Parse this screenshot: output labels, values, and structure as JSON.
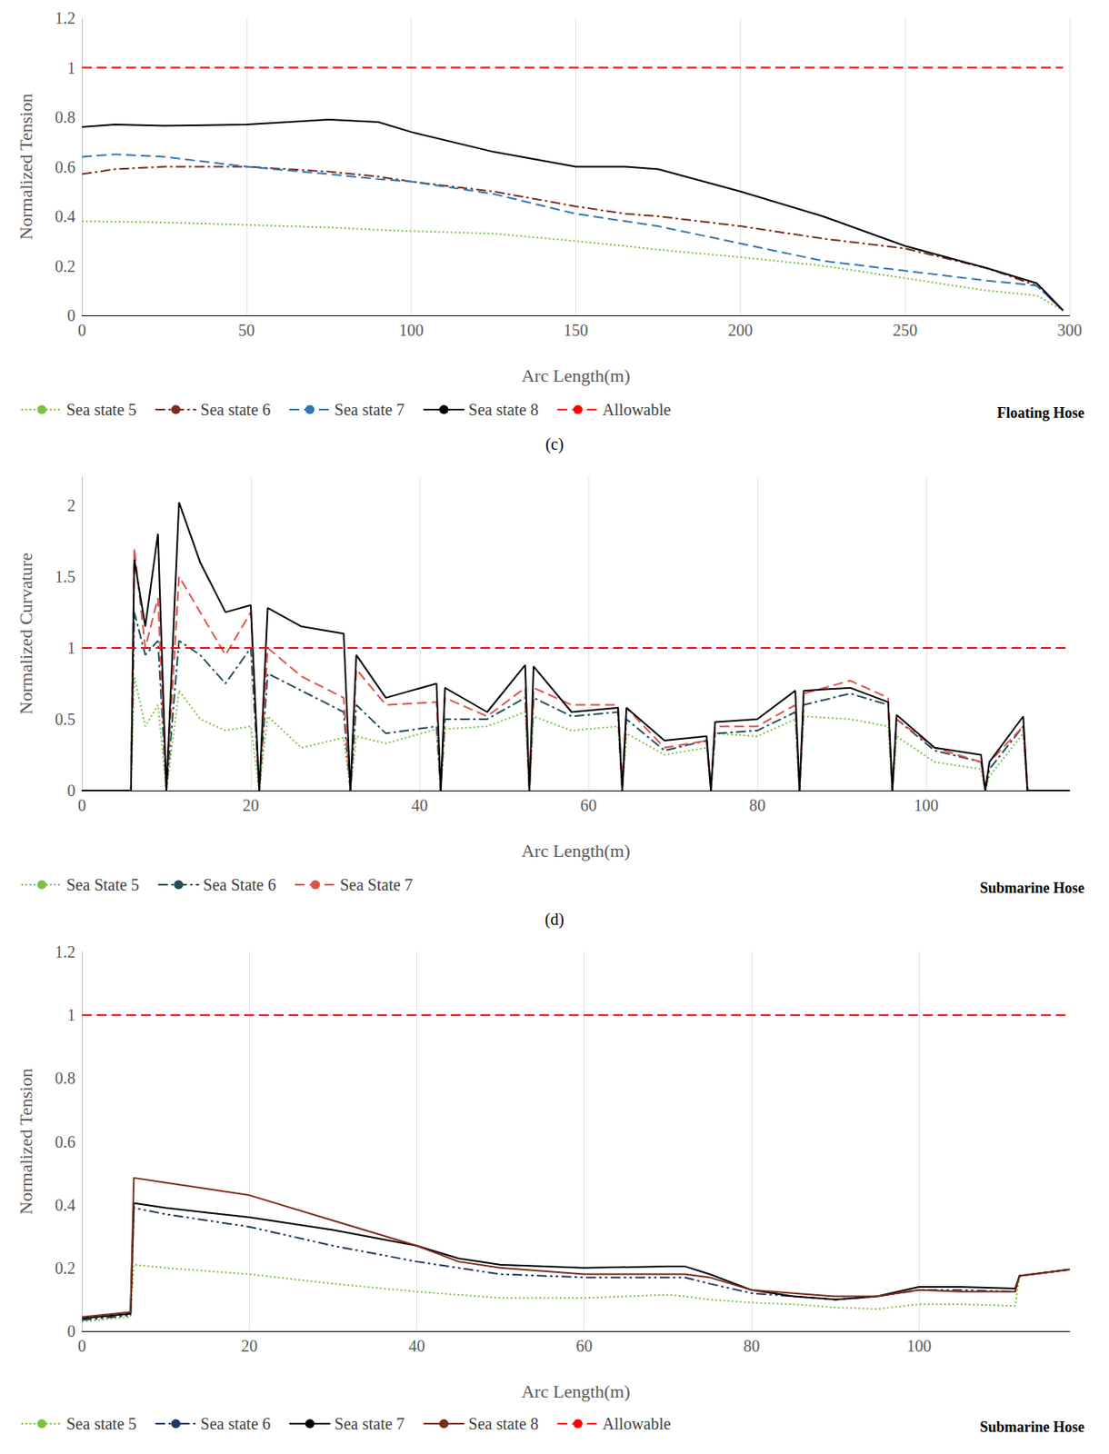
{
  "chart_data": [
    {
      "type": "line",
      "subtitle": "(c)",
      "annotations": [
        "Floating Hose"
      ],
      "x_label": "Arc Length(m)",
      "y_label": "Normalized Tension",
      "x": [
        0,
        10,
        25,
        50,
        75,
        90,
        100,
        125,
        150,
        165,
        175,
        200,
        225,
        250,
        275,
        290,
        298
      ],
      "xlim": [
        0,
        300
      ],
      "xticks": [
        0,
        50,
        100,
        150,
        200,
        250,
        300
      ],
      "ylim": [
        0,
        1.2
      ],
      "yticks": [
        0,
        0.2,
        0.4,
        0.6,
        0.8,
        1,
        1.2
      ],
      "grid": true,
      "legend": "bottom",
      "series": [
        {
          "name": "Sea state 5",
          "color": "#7ac143",
          "line_style": "dotted",
          "values": [
            0.38,
            0.378,
            0.375,
            0.365,
            0.355,
            0.345,
            0.34,
            0.33,
            0.3,
            0.28,
            0.265,
            0.235,
            0.2,
            0.15,
            0.1,
            0.08,
            0.02
          ]
        },
        {
          "name": "Sea state 6",
          "color": "#7b2c1a",
          "line_style": "dashdot",
          "values": [
            0.57,
            0.59,
            0.6,
            0.6,
            0.58,
            0.56,
            0.54,
            0.5,
            0.44,
            0.41,
            0.4,
            0.36,
            0.31,
            0.27,
            0.19,
            0.12,
            0.02
          ]
        },
        {
          "name": "Sea state 7",
          "color": "#2e75b6",
          "line_style": "dashed",
          "values": [
            0.64,
            0.65,
            0.64,
            0.6,
            0.57,
            0.55,
            0.54,
            0.49,
            0.41,
            0.38,
            0.36,
            0.29,
            0.22,
            0.18,
            0.14,
            0.12,
            0.02
          ]
        },
        {
          "name": "Sea state 8",
          "color": "#000000",
          "line_style": "solid",
          "values": [
            0.76,
            0.77,
            0.765,
            0.77,
            0.79,
            0.78,
            0.74,
            0.66,
            0.6,
            0.6,
            0.59,
            0.5,
            0.4,
            0.28,
            0.19,
            0.13,
            0.02
          ]
        },
        {
          "name": "Allowable",
          "color": "#ff0000",
          "line_style": "dashed",
          "values": [
            1,
            1,
            1,
            1,
            1,
            1,
            1,
            1,
            1,
            1,
            1,
            1,
            1,
            1,
            1,
            1,
            1
          ]
        }
      ]
    },
    {
      "type": "line",
      "subtitle": "(d)",
      "annotations": [
        "Submarine Hose"
      ],
      "x_label": "Arc Length(m)",
      "y_label": "Normalized Curvature",
      "x": [
        0,
        5.8,
        6.2,
        7.5,
        9,
        10,
        11.5,
        14,
        17,
        20,
        21,
        22,
        26,
        31,
        31.8,
        32.5,
        36,
        42,
        42.5,
        43,
        48,
        52.5,
        53,
        53.5,
        58,
        63.5,
        64,
        64.5,
        69,
        74,
        74.5,
        75,
        80,
        84.5,
        85,
        85.5,
        91,
        95.5,
        96,
        96.5,
        101,
        106.5,
        107,
        107.5,
        111.5,
        112,
        117
      ],
      "xlim": [
        0,
        117
      ],
      "xticks": [
        0,
        20,
        40,
        60,
        80,
        100
      ],
      "ylim": [
        0,
        2.2
      ],
      "yticks": [
        0,
        0.5,
        1,
        1.5,
        2
      ],
      "grid": true,
      "legend": "bottom",
      "series": [
        {
          "name": "Sea State 5",
          "color": "#7ac143",
          "line_style": "dotted",
          "values": [
            0,
            0,
            0.8,
            0.45,
            0.6,
            0,
            0.7,
            0.5,
            0.42,
            0.45,
            0,
            0.52,
            0.3,
            0.37,
            0,
            0.38,
            0.33,
            0.43,
            0,
            0.43,
            0.45,
            0.55,
            0,
            0.52,
            0.42,
            0.45,
            0,
            0.4,
            0.25,
            0.3,
            0,
            0.4,
            0.38,
            0.5,
            0,
            0.52,
            0.5,
            0.45,
            0,
            0.38,
            0.2,
            0.15,
            0,
            0.1,
            0.4,
            0,
            0
          ]
        },
        {
          "name": "Sea State 6",
          "color": "#1f4e5a",
          "line_style": "dashdot",
          "values": [
            0,
            0,
            1.25,
            0.95,
            1.05,
            0,
            1.05,
            0.95,
            0.75,
            1.0,
            0,
            0.82,
            0.7,
            0.55,
            0,
            0.6,
            0.4,
            0.45,
            0,
            0.5,
            0.5,
            0.65,
            0,
            0.65,
            0.52,
            0.55,
            0,
            0.5,
            0.28,
            0.35,
            0,
            0.4,
            0.42,
            0.55,
            0,
            0.6,
            0.68,
            0.6,
            0,
            0.5,
            0.28,
            0.2,
            0,
            0.15,
            0.45,
            0,
            0
          ]
        },
        {
          "name": "Sea State 7",
          "color": "#e0504a",
          "line_style": "dashed",
          "values": [
            0,
            0,
            1.7,
            1.0,
            1.35,
            0,
            1.5,
            1.25,
            0.95,
            1.25,
            0,
            1.0,
            0.8,
            0.65,
            0,
            0.85,
            0.6,
            0.62,
            0,
            0.65,
            0.52,
            0.72,
            0,
            0.72,
            0.6,
            0.6,
            0,
            0.58,
            0.3,
            0.35,
            0,
            0.45,
            0.45,
            0.6,
            0,
            0.68,
            0.77,
            0.65,
            0,
            0.5,
            0.3,
            0.2,
            0,
            0.2,
            0.45,
            0,
            0
          ]
        },
        {
          "color": "#000000",
          "line_style": "solid",
          "values": [
            0,
            0,
            1.62,
            1.15,
            1.8,
            0,
            2.02,
            1.6,
            1.25,
            1.3,
            0,
            1.28,
            1.15,
            1.1,
            0,
            0.95,
            0.65,
            0.75,
            0,
            0.72,
            0.55,
            0.88,
            0,
            0.87,
            0.55,
            0.58,
            0,
            0.58,
            0.35,
            0.38,
            0,
            0.48,
            0.5,
            0.7,
            0,
            0.7,
            0.72,
            0.62,
            0,
            0.53,
            0.3,
            0.25,
            0,
            0.2,
            0.52,
            0,
            0
          ]
        },
        {
          "color": "#ff0000",
          "line_style": "dashed",
          "values": [
            1,
            1,
            1,
            1,
            1,
            1,
            1,
            1,
            1,
            1,
            1,
            1,
            1,
            1,
            1,
            1,
            1,
            1,
            1,
            1,
            1,
            1,
            1,
            1,
            1,
            1,
            1,
            1,
            1,
            1,
            1,
            1,
            1,
            1,
            1,
            1,
            1,
            1,
            1,
            1,
            1,
            1,
            1,
            1,
            1,
            1,
            1
          ]
        }
      ]
    },
    {
      "type": "line",
      "annotations": [
        "Submarine Hose"
      ],
      "x_label": "Arc Length(m)",
      "y_label": "Normalized Tension",
      "x": [
        0,
        5.8,
        6.2,
        10,
        20,
        30,
        40,
        45,
        50,
        60,
        70,
        72,
        75,
        80,
        85,
        90,
        95,
        100,
        105,
        111.5,
        112,
        118
      ],
      "xlim": [
        0,
        118
      ],
      "xticks": [
        0,
        20,
        40,
        60,
        80,
        100
      ],
      "ylim": [
        0,
        1.2
      ],
      "yticks": [
        0,
        0.2,
        0.4,
        0.6,
        0.8,
        1,
        1.2
      ],
      "grid": true,
      "legend": "bottom",
      "series": [
        {
          "name": "Sea state 5",
          "color": "#7ac143",
          "line_style": "dotted",
          "values": [
            0.03,
            0.045,
            0.21,
            0.2,
            0.18,
            0.15,
            0.125,
            0.115,
            0.105,
            0.105,
            0.115,
            0.11,
            0.1,
            0.09,
            0.085,
            0.075,
            0.07,
            0.085,
            0.085,
            0.08,
            0.175,
            0.195
          ]
        },
        {
          "name": "Sea state 6",
          "color": "#1f3864",
          "line_style": "dashdotdot",
          "values": [
            0.035,
            0.05,
            0.39,
            0.37,
            0.33,
            0.27,
            0.22,
            0.2,
            0.18,
            0.17,
            0.17,
            0.17,
            0.15,
            0.12,
            0.11,
            0.1,
            0.11,
            0.13,
            0.13,
            0.125,
            0.175,
            0.195
          ]
        },
        {
          "name": "Sea state 7",
          "color": "#000000",
          "line_style": "solid",
          "values": [
            0.04,
            0.055,
            0.405,
            0.39,
            0.36,
            0.32,
            0.27,
            0.23,
            0.21,
            0.2,
            0.205,
            0.205,
            0.18,
            0.13,
            0.11,
            0.1,
            0.11,
            0.14,
            0.14,
            0.135,
            0.175,
            0.195
          ]
        },
        {
          "name": "Sea state 8",
          "color": "#7b2c1a",
          "line_style": "solid",
          "values": [
            0.045,
            0.06,
            0.485,
            0.47,
            0.43,
            0.35,
            0.27,
            0.22,
            0.2,
            0.18,
            0.18,
            0.18,
            0.17,
            0.13,
            0.12,
            0.11,
            0.11,
            0.13,
            0.125,
            0.125,
            0.175,
            0.195
          ]
        },
        {
          "name": "Allowable",
          "color": "#ff0000",
          "line_style": "dashed",
          "values": [
            1,
            1,
            1,
            1,
            1,
            1,
            1,
            1,
            1,
            1,
            1,
            1,
            1,
            1,
            1,
            1,
            1,
            1,
            1,
            1,
            1,
            1
          ]
        }
      ]
    }
  ]
}
